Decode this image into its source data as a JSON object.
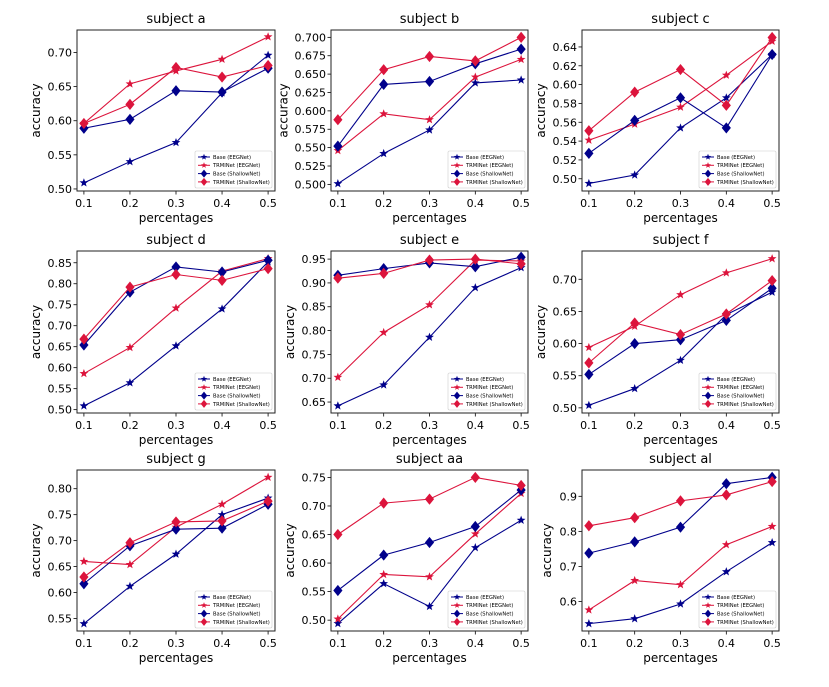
{
  "figure": {
    "xlabel": "percentages",
    "ylabel": "accuracy",
    "colors": {
      "base": "#00008b",
      "trminet": "#dc143c"
    }
  },
  "chart_data": [
    {
      "type": "line",
      "title": "subject a",
      "xlabel": "percentages",
      "ylabel": "accuracy",
      "x": [
        0.1,
        0.2,
        0.3,
        0.4,
        0.5
      ],
      "x_ticks": [
        "0.1",
        "0.2",
        "0.3",
        "0.4",
        "0.5"
      ],
      "ylim": [
        0.497,
        0.733
      ],
      "y_ticks": [
        0.5,
        0.55,
        0.6,
        0.65,
        0.7
      ],
      "y_tick_labels": [
        "0.50",
        "0.55",
        "0.60",
        "0.65",
        "0.70"
      ],
      "legend": "lower-right",
      "series": [
        {
          "name": "Base (EEGNet)",
          "marker": "star",
          "color": "#00008b",
          "values": [
            0.509,
            0.54,
            0.568,
            0.641,
            0.696
          ]
        },
        {
          "name": "TRMINet (EEGNet)",
          "marker": "star",
          "color": "#dc143c",
          "values": [
            0.596,
            0.654,
            0.673,
            0.69,
            0.723
          ]
        },
        {
          "name": "Base (ShallowNet)",
          "marker": "diamond",
          "color": "#00008b",
          "values": [
            0.589,
            0.602,
            0.644,
            0.642,
            0.677
          ]
        },
        {
          "name": "TRMINet (ShallowNet)",
          "marker": "diamond",
          "color": "#dc143c",
          "values": [
            0.596,
            0.624,
            0.678,
            0.664,
            0.681
          ]
        }
      ]
    },
    {
      "type": "line",
      "title": "subject b",
      "xlabel": "percentages",
      "ylabel": "accuracy",
      "x": [
        0.1,
        0.2,
        0.3,
        0.4,
        0.5
      ],
      "x_ticks": [
        "0.1",
        "0.2",
        "0.3",
        "0.4",
        "0.5"
      ],
      "ylim": [
        0.491,
        0.71
      ],
      "y_ticks": [
        0.5,
        0.525,
        0.55,
        0.575,
        0.6,
        0.625,
        0.65,
        0.675,
        0.7
      ],
      "y_tick_labels": [
        "0.500",
        "0.525",
        "0.550",
        "0.575",
        "0.600",
        "0.625",
        "0.650",
        "0.675",
        "0.700"
      ],
      "legend": "lower-right",
      "series": [
        {
          "name": "Base (EEGNet)",
          "marker": "star",
          "color": "#00008b",
          "values": [
            0.501,
            0.542,
            0.574,
            0.638,
            0.642
          ]
        },
        {
          "name": "TRMINet (EEGNet)",
          "marker": "star",
          "color": "#dc143c",
          "values": [
            0.546,
            0.596,
            0.588,
            0.646,
            0.67
          ]
        },
        {
          "name": "Base (ShallowNet)",
          "marker": "diamond",
          "color": "#00008b",
          "values": [
            0.552,
            0.636,
            0.64,
            0.664,
            0.684
          ]
        },
        {
          "name": "TRMINet (ShallowNet)",
          "marker": "diamond",
          "color": "#dc143c",
          "values": [
            0.588,
            0.656,
            0.674,
            0.668,
            0.7
          ]
        }
      ]
    },
    {
      "type": "line",
      "title": "subject c",
      "xlabel": "percentages",
      "ylabel": "accuracy",
      "x": [
        0.1,
        0.2,
        0.3,
        0.4,
        0.5
      ],
      "x_ticks": [
        "0.1",
        "0.2",
        "0.3",
        "0.4",
        "0.5"
      ],
      "ylim": [
        0.487,
        0.658
      ],
      "y_ticks": [
        0.5,
        0.52,
        0.54,
        0.56,
        0.58,
        0.6,
        0.62,
        0.64
      ],
      "y_tick_labels": [
        "0.50",
        "0.52",
        "0.54",
        "0.56",
        "0.58",
        "0.60",
        "0.62",
        "0.64"
      ],
      "legend": "lower-right",
      "series": [
        {
          "name": "Base (EEGNet)",
          "marker": "star",
          "color": "#00008b",
          "values": [
            0.495,
            0.504,
            0.554,
            0.586,
            0.632
          ]
        },
        {
          "name": "TRMINet (EEGNet)",
          "marker": "star",
          "color": "#dc143c",
          "values": [
            0.541,
            0.558,
            0.576,
            0.61,
            0.646
          ]
        },
        {
          "name": "Base (ShallowNet)",
          "marker": "diamond",
          "color": "#00008b",
          "values": [
            0.527,
            0.562,
            0.586,
            0.554,
            0.632
          ]
        },
        {
          "name": "TRMINet (ShallowNet)",
          "marker": "diamond",
          "color": "#dc143c",
          "values": [
            0.551,
            0.592,
            0.616,
            0.578,
            0.65
          ]
        }
      ]
    },
    {
      "type": "line",
      "title": "subject d",
      "xlabel": "percentages",
      "ylabel": "accuracy",
      "x": [
        0.1,
        0.2,
        0.3,
        0.4,
        0.5
      ],
      "x_ticks": [
        "0.1",
        "0.2",
        "0.3",
        "0.4",
        "0.5"
      ],
      "ylim": [
        0.492,
        0.878
      ],
      "y_ticks": [
        0.5,
        0.55,
        0.6,
        0.65,
        0.7,
        0.75,
        0.8,
        0.85
      ],
      "y_tick_labels": [
        "0.50",
        "0.55",
        "0.60",
        "0.65",
        "0.70",
        "0.75",
        "0.80",
        "0.85"
      ],
      "legend": "lower-right",
      "series": [
        {
          "name": "Base (EEGNet)",
          "marker": "star",
          "color": "#00008b",
          "values": [
            0.509,
            0.564,
            0.652,
            0.74,
            0.852
          ]
        },
        {
          "name": "TRMINet (EEGNet)",
          "marker": "star",
          "color": "#dc143c",
          "values": [
            0.586,
            0.648,
            0.742,
            0.83,
            0.86
          ]
        },
        {
          "name": "Base (ShallowNet)",
          "marker": "diamond",
          "color": "#00008b",
          "values": [
            0.654,
            0.78,
            0.84,
            0.828,
            0.856
          ]
        },
        {
          "name": "TRMINet (ShallowNet)",
          "marker": "diamond",
          "color": "#dc143c",
          "values": [
            0.668,
            0.792,
            0.822,
            0.808,
            0.836
          ]
        }
      ]
    },
    {
      "type": "line",
      "title": "subject e",
      "xlabel": "percentages",
      "ylabel": "accuracy",
      "x": [
        0.1,
        0.2,
        0.3,
        0.4,
        0.5
      ],
      "x_ticks": [
        "0.1",
        "0.2",
        "0.3",
        "0.4",
        "0.5"
      ],
      "ylim": [
        0.627,
        0.967
      ],
      "y_ticks": [
        0.65,
        0.7,
        0.75,
        0.8,
        0.85,
        0.9,
        0.95
      ],
      "y_tick_labels": [
        "0.65",
        "0.70",
        "0.75",
        "0.80",
        "0.85",
        "0.90",
        "0.95"
      ],
      "legend": "lower-right",
      "series": [
        {
          "name": "Base (EEGNet)",
          "marker": "star",
          "color": "#00008b",
          "values": [
            0.642,
            0.686,
            0.786,
            0.89,
            0.932
          ]
        },
        {
          "name": "TRMINet (EEGNet)",
          "marker": "star",
          "color": "#dc143c",
          "values": [
            0.702,
            0.796,
            0.854,
            0.948,
            0.946
          ]
        },
        {
          "name": "Base (ShallowNet)",
          "marker": "diamond",
          "color": "#00008b",
          "values": [
            0.916,
            0.93,
            0.942,
            0.934,
            0.954
          ]
        },
        {
          "name": "TRMINet (ShallowNet)",
          "marker": "diamond",
          "color": "#dc143c",
          "values": [
            0.91,
            0.92,
            0.948,
            0.95,
            0.94
          ]
        }
      ]
    },
    {
      "type": "line",
      "title": "subject f",
      "xlabel": "percentages",
      "ylabel": "accuracy",
      "x": [
        0.1,
        0.2,
        0.3,
        0.4,
        0.5
      ],
      "x_ticks": [
        "0.1",
        "0.2",
        "0.3",
        "0.4",
        "0.5"
      ],
      "ylim": [
        0.492,
        0.744
      ],
      "y_ticks": [
        0.5,
        0.55,
        0.6,
        0.65,
        0.7
      ],
      "y_tick_labels": [
        "0.50",
        "0.55",
        "0.60",
        "0.65",
        "0.70"
      ],
      "legend": "lower-right",
      "series": [
        {
          "name": "Base (EEGNet)",
          "marker": "star",
          "color": "#00008b",
          "values": [
            0.504,
            0.53,
            0.574,
            0.645,
            0.68
          ]
        },
        {
          "name": "TRMINet (EEGNet)",
          "marker": "star",
          "color": "#dc143c",
          "values": [
            0.594,
            0.627,
            0.676,
            0.71,
            0.732
          ]
        },
        {
          "name": "Base (ShallowNet)",
          "marker": "diamond",
          "color": "#00008b",
          "values": [
            0.552,
            0.6,
            0.606,
            0.636,
            0.686
          ]
        },
        {
          "name": "TRMINet (ShallowNet)",
          "marker": "diamond",
          "color": "#dc143c",
          "values": [
            0.57,
            0.632,
            0.614,
            0.646,
            0.698
          ]
        }
      ]
    },
    {
      "type": "line",
      "title": "subject g",
      "xlabel": "percentages",
      "ylabel": "accuracy",
      "x": [
        0.1,
        0.2,
        0.3,
        0.4,
        0.5
      ],
      "x_ticks": [
        "0.1",
        "0.2",
        "0.3",
        "0.4",
        "0.5"
      ],
      "ylim": [
        0.526,
        0.836
      ],
      "y_ticks": [
        0.55,
        0.6,
        0.65,
        0.7,
        0.75,
        0.8
      ],
      "y_tick_labels": [
        "0.55",
        "0.60",
        "0.65",
        "0.70",
        "0.75",
        "0.80"
      ],
      "legend": "lower-right",
      "series": [
        {
          "name": "Base (EEGNet)",
          "marker": "star",
          "color": "#00008b",
          "values": [
            0.54,
            0.612,
            0.674,
            0.75,
            0.782
          ]
        },
        {
          "name": "TRMINet (EEGNet)",
          "marker": "star",
          "color": "#dc143c",
          "values": [
            0.66,
            0.654,
            0.726,
            0.77,
            0.822
          ]
        },
        {
          "name": "Base (ShallowNet)",
          "marker": "diamond",
          "color": "#00008b",
          "values": [
            0.617,
            0.69,
            0.722,
            0.724,
            0.77
          ]
        },
        {
          "name": "TRMINet (ShallowNet)",
          "marker": "diamond",
          "color": "#dc143c",
          "values": [
            0.63,
            0.696,
            0.736,
            0.738,
            0.776
          ]
        }
      ]
    },
    {
      "type": "line",
      "title": "subject aa",
      "xlabel": "percentages",
      "ylabel": "accuracy",
      "x": [
        0.1,
        0.2,
        0.3,
        0.4,
        0.5
      ],
      "x_ticks": [
        "0.1",
        "0.2",
        "0.3",
        "0.4",
        "0.5"
      ],
      "ylim": [
        0.481,
        0.763
      ],
      "y_ticks": [
        0.5,
        0.55,
        0.6,
        0.65,
        0.7,
        0.75
      ],
      "y_tick_labels": [
        "0.50",
        "0.55",
        "0.60",
        "0.65",
        "0.70",
        "0.75"
      ],
      "legend": "lower-right",
      "series": [
        {
          "name": "Base (EEGNet)",
          "marker": "star",
          "color": "#00008b",
          "values": [
            0.494,
            0.564,
            0.524,
            0.627,
            0.675
          ]
        },
        {
          "name": "TRMINet (EEGNet)",
          "marker": "star",
          "color": "#dc143c",
          "values": [
            0.502,
            0.58,
            0.576,
            0.651,
            0.722
          ]
        },
        {
          "name": "Base (ShallowNet)",
          "marker": "diamond",
          "color": "#00008b",
          "values": [
            0.552,
            0.614,
            0.636,
            0.664,
            0.728
          ]
        },
        {
          "name": "TRMINet (ShallowNet)",
          "marker": "diamond",
          "color": "#dc143c",
          "values": [
            0.65,
            0.705,
            0.712,
            0.75,
            0.736
          ]
        }
      ]
    },
    {
      "type": "line",
      "title": "subject al",
      "xlabel": "percentages",
      "ylabel": "accuracy",
      "x": [
        0.1,
        0.2,
        0.3,
        0.4,
        0.5
      ],
      "x_ticks": [
        "0.1",
        "0.2",
        "0.3",
        "0.4",
        "0.5"
      ],
      "ylim": [
        0.516,
        0.975
      ],
      "y_ticks": [
        0.6,
        0.7,
        0.8,
        0.9
      ],
      "y_tick_labels": [
        "0.6",
        "0.7",
        "0.8",
        "0.9"
      ],
      "legend": "lower-right",
      "series": [
        {
          "name": "Base (EEGNet)",
          "marker": "star",
          "color": "#00008b",
          "values": [
            0.537,
            0.551,
            0.593,
            0.685,
            0.768
          ]
        },
        {
          "name": "TRMINet (EEGNet)",
          "marker": "star",
          "color": "#dc143c",
          "values": [
            0.576,
            0.66,
            0.648,
            0.762,
            0.814
          ]
        },
        {
          "name": "Base (ShallowNet)",
          "marker": "diamond",
          "color": "#00008b",
          "values": [
            0.738,
            0.77,
            0.812,
            0.936,
            0.954
          ]
        },
        {
          "name": "TRMINet (ShallowNet)",
          "marker": "diamond",
          "color": "#dc143c",
          "values": [
            0.816,
            0.839,
            0.887,
            0.904,
            0.942
          ]
        }
      ]
    }
  ]
}
